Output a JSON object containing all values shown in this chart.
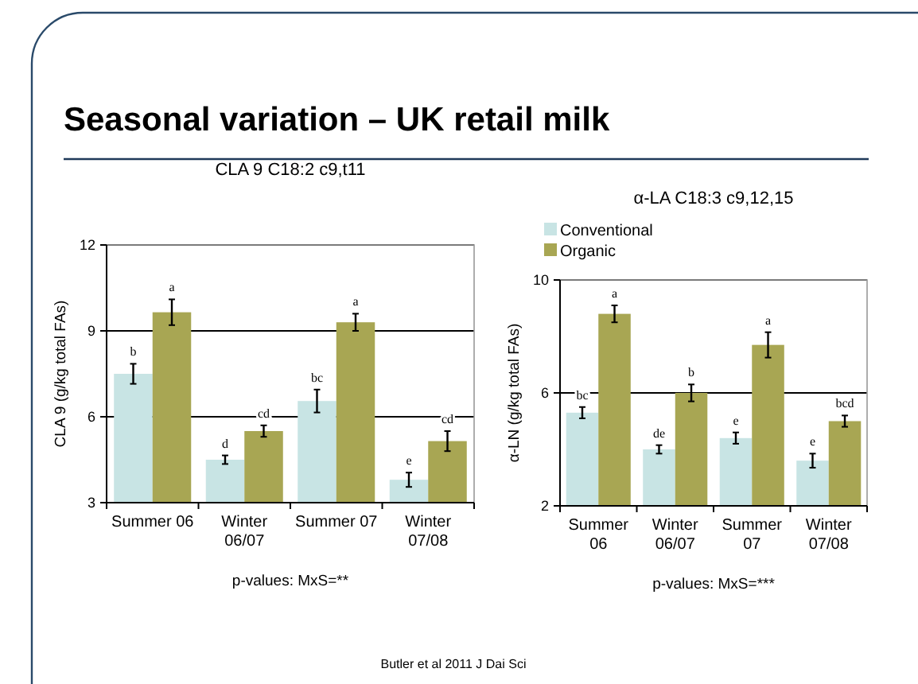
{
  "chart_data": [
    {
      "type": "bar",
      "title": "CLA 9  C18:2 c9,t11",
      "ylabel": "CLA 9 (g/kg total FAs)",
      "categories": [
        "Summer 06",
        "Winter 06/07",
        "Summer 07",
        "Winter 07/08"
      ],
      "series": [
        {
          "color": "#c8e4e4",
          "values": [
            7.5,
            4.5,
            6.55,
            3.8
          ],
          "errors": [
            0.35,
            0.15,
            0.4,
            0.25
          ],
          "value_labels": [
            "b",
            "d",
            "bc",
            "e"
          ]
        },
        {
          "color": "#a8a653",
          "values": [
            9.65,
            5.5,
            9.3,
            5.15
          ],
          "errors": [
            0.45,
            0.2,
            0.3,
            0.35
          ],
          "value_labels": [
            "a",
            "cd",
            "a",
            "cd"
          ]
        }
      ],
      "ylim": [
        3,
        12
      ],
      "yticks": [
        3,
        6,
        9,
        12
      ],
      "grid": "y",
      "legend": false,
      "annotations": [
        "p-values: MxS=**"
      ]
    },
    {
      "type": "bar",
      "title": "α-LA C18:3 c9,12,15",
      "ylabel": "α-LN (g/kg total FAs)",
      "categories": [
        "Summer 06",
        "Winter 06/07",
        "Summer 07",
        "Winter 07/08"
      ],
      "series": [
        {
          "name": "Conventional",
          "color": "#c8e4e4",
          "values": [
            5.3,
            4.0,
            4.4,
            3.6
          ],
          "errors": [
            0.2,
            0.15,
            0.2,
            0.25
          ],
          "value_labels": [
            "bc",
            "de",
            "e",
            "e"
          ]
        },
        {
          "name": "Organic",
          "color": "#a8a653",
          "values": [
            8.8,
            6.0,
            7.7,
            5.0
          ],
          "errors": [
            0.3,
            0.3,
            0.45,
            0.2
          ],
          "value_labels": [
            "a",
            "b",
            "a",
            "bcd"
          ]
        }
      ],
      "ylim": [
        2,
        10
      ],
      "yticks": [
        2,
        6,
        10
      ],
      "grid": "y",
      "legend": "top left",
      "annotations": [
        "p-values: MxS=***"
      ]
    },
    {
      "type": "other",
      "title": "Seasonal variation – UK retail milk",
      "annotations": [
        "Butler et al 2011 J Dai Sci"
      ]
    }
  ]
}
